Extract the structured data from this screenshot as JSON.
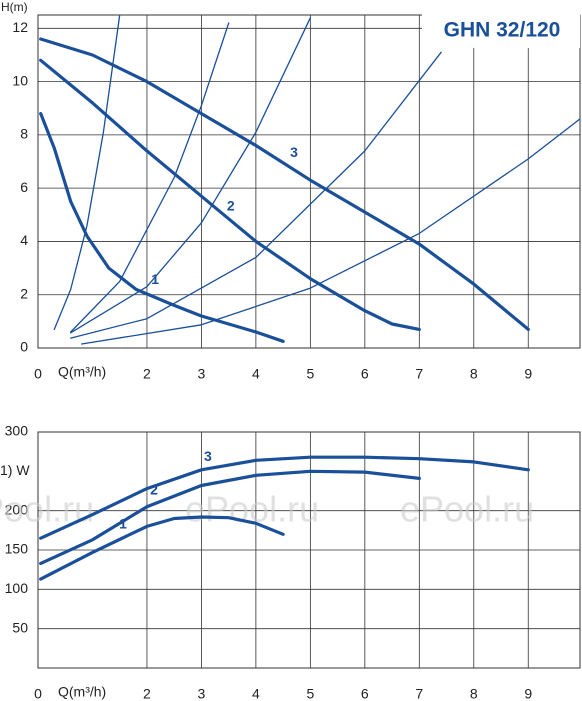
{
  "chart_data": [
    {
      "type": "line",
      "title": "GHN 32/120",
      "ylabel": "H(m)",
      "xlabel": "Q(m³/h)",
      "xlim": [
        0,
        9.95
      ],
      "ylim": [
        0,
        12.5
      ],
      "xticks": [
        0,
        2,
        3,
        4,
        5,
        6,
        7,
        8,
        9
      ],
      "yticks": [
        0,
        2,
        4,
        6,
        8,
        10,
        12
      ],
      "grid": true,
      "series": [
        {
          "name": "1",
          "color": "#1a4f9a",
          "line_width": "thick",
          "x": [
            0.05,
            0.3,
            0.6,
            0.9,
            1.3,
            1.8,
            2.5,
            3,
            3.5,
            4,
            4.5
          ],
          "values": [
            8.8,
            7.5,
            5.5,
            4.2,
            3.0,
            2.2,
            1.6,
            1.2,
            0.9,
            0.6,
            0.25
          ]
        },
        {
          "name": "2",
          "color": "#1a4f9a",
          "line_width": "thick",
          "x": [
            0.05,
            1,
            2,
            3,
            4,
            5,
            6,
            6.5,
            7
          ],
          "values": [
            10.8,
            9.2,
            7.4,
            5.7,
            4.0,
            2.6,
            1.4,
            0.9,
            0.7
          ]
        },
        {
          "name": "3",
          "color": "#1a4f9a",
          "line_width": "thick",
          "x": [
            0.05,
            1,
            2,
            3,
            4,
            5,
            6,
            7,
            8,
            9
          ],
          "values": [
            11.6,
            11.0,
            10.0,
            8.8,
            7.6,
            6.3,
            5.1,
            3.9,
            2.4,
            0.7
          ]
        },
        {
          "color": "#1a4f9a",
          "line_width": "thin",
          "x": [
            0.3,
            0.6,
            0.9,
            1.2,
            1.5
          ],
          "values": [
            0.7,
            2.2,
            4.6,
            8.1,
            12.5
          ]
        },
        {
          "color": "#1a4f9a",
          "line_width": "thin",
          "x": [
            0.6,
            1.5,
            2.5,
            3,
            3.5
          ],
          "values": [
            0.6,
            2.5,
            6.4,
            9.1,
            12.2
          ]
        },
        {
          "color": "#1a4f9a",
          "line_width": "thin",
          "x": [
            0.6,
            2,
            3,
            4,
            5
          ],
          "values": [
            0.57,
            2.3,
            4.7,
            8.1,
            12.4
          ]
        },
        {
          "color": "#1a4f9a",
          "line_width": "thin",
          "x": [
            0.6,
            2,
            4,
            6,
            7.4
          ],
          "values": [
            0.37,
            1.1,
            3.4,
            7.4,
            11.1
          ]
        },
        {
          "color": "#1a4f9a",
          "line_width": "thin",
          "x": [
            0.8,
            3,
            5,
            7,
            9,
            9.95
          ],
          "values": [
            0.15,
            0.87,
            2.25,
            4.3,
            7.1,
            8.6
          ]
        }
      ],
      "annotations": [
        {
          "text": "1",
          "x": 2.15,
          "y": 2.55
        },
        {
          "text": "2",
          "x": 3.54,
          "y": 5.3
        },
        {
          "text": "3",
          "x": 4.7,
          "y": 7.3
        }
      ]
    },
    {
      "type": "line",
      "ylabel": "1) W",
      "xlabel": "Q(m³/h)",
      "watermark": "ePool.ru",
      "xlim": [
        0,
        9.95
      ],
      "ylim": [
        0,
        300
      ],
      "xticks": [
        0,
        2,
        3,
        4,
        5,
        6,
        7,
        8,
        9
      ],
      "yticks": [
        50,
        100,
        150,
        200,
        300
      ],
      "grid": true,
      "series": [
        {
          "name": "1",
          "color": "#1a4f9a",
          "line_width": "thick",
          "x": [
            0.05,
            1,
            2,
            2.5,
            3,
            3.5,
            4,
            4.5
          ],
          "values": [
            113,
            147,
            180,
            190,
            192,
            191,
            184,
            170
          ]
        },
        {
          "name": "2",
          "color": "#1a4f9a",
          "line_width": "thick",
          "x": [
            0.05,
            1,
            2,
            3,
            4,
            5,
            6,
            7
          ],
          "values": [
            133,
            163,
            205,
            232,
            245,
            250,
            249,
            241
          ]
        },
        {
          "name": "3",
          "color": "#1a4f9a",
          "line_width": "thick",
          "x": [
            0.05,
            1,
            2,
            3,
            4,
            5,
            6,
            7,
            8,
            9
          ],
          "values": [
            165,
            195,
            228,
            252,
            264,
            268,
            268,
            266,
            262,
            252
          ]
        }
      ],
      "annotations": [
        {
          "text": "1",
          "x": 1.56,
          "y": 182
        },
        {
          "text": "2",
          "x": 2.13,
          "y": 225
        },
        {
          "text": "3",
          "x": 3.12,
          "y": 268
        }
      ]
    }
  ]
}
